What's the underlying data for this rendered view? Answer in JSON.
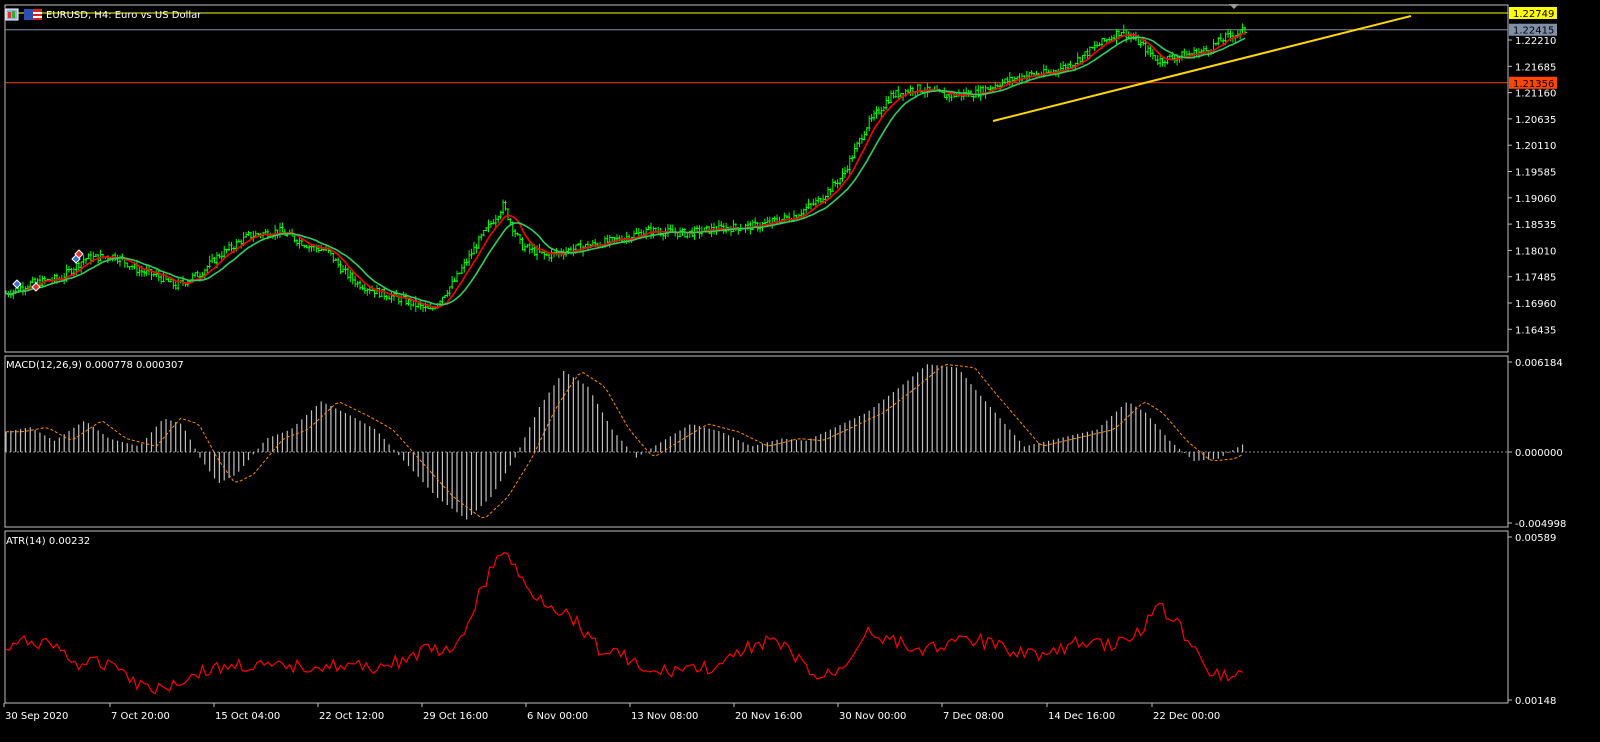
{
  "window": {
    "title": "EURUSD, H4:  Euro vs US Dollar",
    "symbol_icon": "chart-window-icon",
    "flag_icon": "eu-us-flag-icon"
  },
  "colors": {
    "background": "#000000",
    "bull_candle": "#00ff00",
    "frame": "#c0c0c0",
    "ma_fast": "#ff0000",
    "ma_slow": "#2fcf5f",
    "resistance_line": "#ffff00",
    "support_line": "#ff4500",
    "trendline": "#ffd700",
    "macd_histogram": "#c0c0c0",
    "macd_signal": "#ff8c00",
    "atr_line": "#ff0000",
    "current_price_tag": "#7f8fa6"
  },
  "price_panel": {
    "y_ticks": [
      "1.22210",
      "1.21685",
      "1.21160",
      "1.20635",
      "1.20110",
      "1.19585",
      "1.19060",
      "1.18535",
      "1.18010",
      "1.17485",
      "1.16960",
      "1.16435"
    ],
    "price_tags": [
      {
        "name": "resistance-price-tag",
        "label": "1.22749",
        "value": 1.22749,
        "bg": "#ffff00",
        "fg": "#000000"
      },
      {
        "name": "current-price-tag",
        "label": "1.22415",
        "value": 1.22415,
        "bg": "#7f8fa6",
        "fg": "#000000"
      },
      {
        "name": "support-price-tag",
        "label": "1.21356",
        "value": 1.21356,
        "bg": "#ff4500",
        "fg": "#000000"
      }
    ],
    "horizontal_lines": [
      {
        "name": "resistance-hline",
        "value": 1.22749,
        "color": "#ffff00"
      },
      {
        "name": "current-price-hline",
        "value": 1.22415,
        "color": "#7f8fa6"
      },
      {
        "name": "support-hline",
        "value": 1.21356,
        "color": "#ff4500"
      }
    ]
  },
  "macd_panel": {
    "label": "MACD(12,26,9) 0.000778 0.000307",
    "y_ticks": [
      "0.006184",
      "0.000000",
      "-0.004998"
    ]
  },
  "atr_panel": {
    "label": "ATR(14) 0.00232",
    "y_ticks": [
      "0.00589",
      "0.00148"
    ]
  },
  "time_axis": [
    "30 Sep 2020",
    "7 Oct 20:00",
    "15 Oct 04:00",
    "22 Oct 12:00",
    "29 Oct 16:00",
    "6 Nov 00:00",
    "13 Nov 08:00",
    "20 Nov 16:00",
    "30 Nov 00:00",
    "7 Dec 08:00",
    "14 Dec 16:00",
    "22 Dec 00:00"
  ]
}
